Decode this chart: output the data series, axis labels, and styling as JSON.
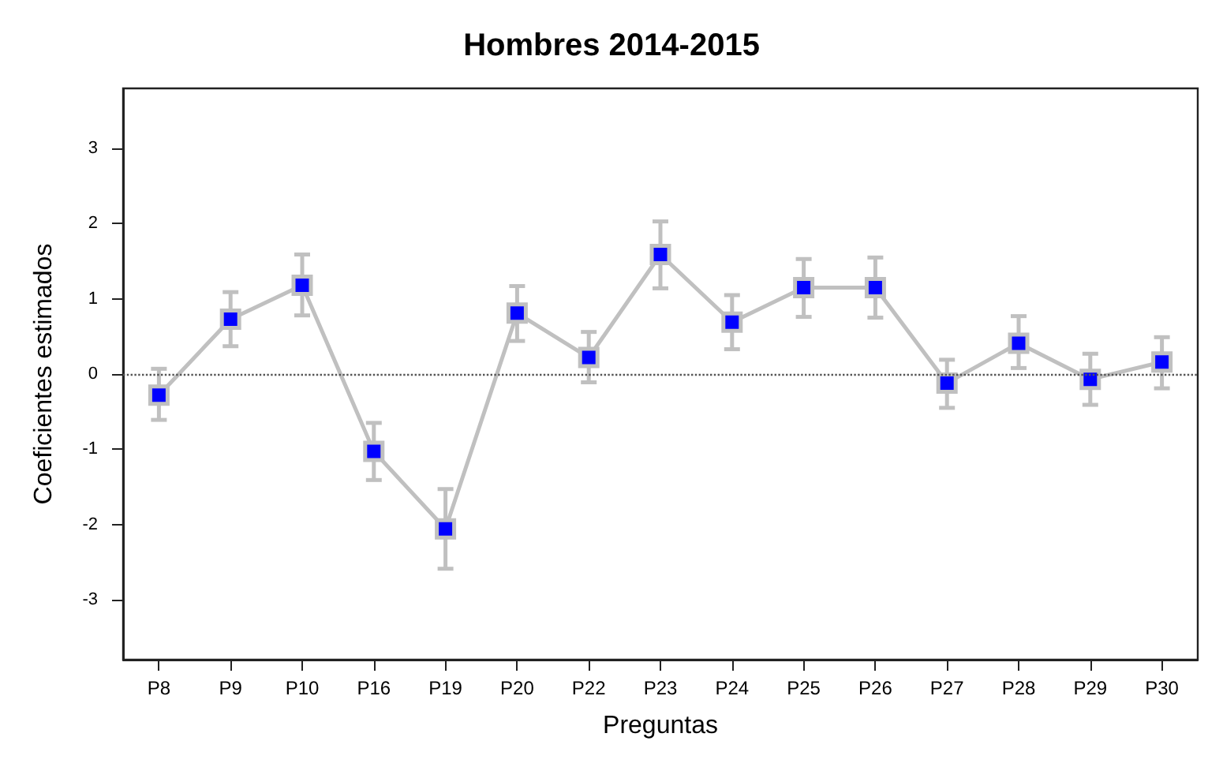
{
  "chart_data": {
    "type": "line",
    "title": "Hombres 2014-2015",
    "xlabel": "Preguntas",
    "ylabel": "Coeficientes estimados",
    "categories": [
      "P8",
      "P9",
      "P10",
      "P16",
      "P19",
      "P20",
      "P22",
      "P23",
      "P24",
      "P25",
      "P26",
      "P27",
      "P28",
      "P29",
      "P30"
    ],
    "series": [
      {
        "color": "#c0c0c0",
        "colors": [
          "#0000ff",
          "#0000ff",
          "#0000ff",
          "#0000ff",
          "#0000ff",
          "#0000ff",
          "#0000ff",
          "#0000ff",
          "#0000ff",
          "#0000ff",
          "#0000ff",
          "#0000ff",
          "#0000ff",
          "#0000ff",
          "#0000ff"
        ],
        "values": [
          -0.28,
          0.73,
          1.18,
          -1.03,
          -2.06,
          0.81,
          0.22,
          1.59,
          0.69,
          1.15,
          1.15,
          -0.12,
          0.41,
          -0.07,
          0.16
        ],
        "errors": [
          [
            -0.61,
            0.07
          ],
          [
            0.37,
            1.09
          ],
          [
            0.78,
            1.59
          ],
          [
            -1.41,
            -0.65
          ],
          [
            -2.59,
            -1.53
          ],
          [
            0.44,
            1.17
          ],
          [
            -0.11,
            0.56
          ],
          [
            1.14,
            2.03
          ],
          [
            0.33,
            1.05
          ],
          [
            0.76,
            1.53
          ],
          [
            0.75,
            1.55
          ],
          [
            -0.45,
            0.19
          ],
          [
            0.08,
            0.77
          ],
          [
            -0.41,
            0.27
          ],
          [
            -0.19,
            0.49
          ]
        ]
      }
    ],
    "ylim": [
      -3.8,
      3.8
    ],
    "yticks": [
      -3,
      -2,
      -1,
      0,
      1,
      2,
      3
    ],
    "grid": false,
    "marker": "square",
    "line_style": "solid",
    "ref_lines": [
      {
        "axis": "y",
        "value": 0,
        "line_style": "dotted",
        "color": "#555555"
      }
    ]
  }
}
